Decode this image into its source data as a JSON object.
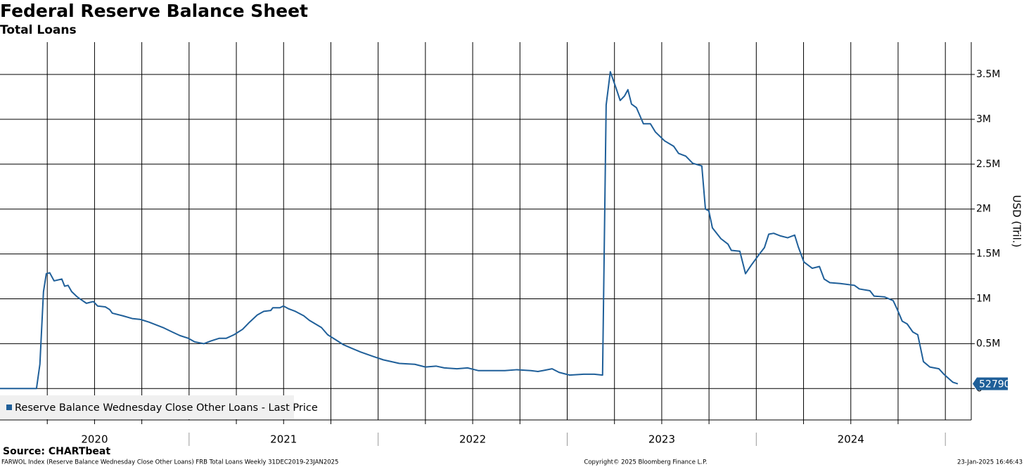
{
  "chart_data": {
    "type": "line",
    "title": "Federal Reserve Balance Sheet",
    "subtitle": "Total Loans",
    "y_label": "USD (Tril.)",
    "source": "Source: CHARTbeat",
    "footer_left": "FARWOL Index (Reserve Balance Wednesday Close Other Loans) FRB Total Loans  Weekly 31DEC2019-23JAN2025",
    "footer_center": "Copyright© 2025 Bloomberg Finance L.P.",
    "footer_right": "23-Jan-2025 16:46:43",
    "xlim": [
      2020,
      2025.137
    ],
    "ylim": [
      -350000,
      3860000
    ],
    "xgrid": [
      2020.25,
      2020.5,
      2020.75,
      2021,
      2021.25,
      2021.5,
      2021.75,
      2022,
      2022.25,
      2022.5,
      2022.75,
      2023,
      2023.25,
      2023.5,
      2023.75,
      2024,
      2024.25,
      2024.5,
      2024.75,
      2025
    ],
    "xticks": [
      {
        "value": 2020.5,
        "label": "2020"
      },
      {
        "value": 2021.5,
        "label": "2021"
      },
      {
        "value": 2022.5,
        "label": "2022"
      },
      {
        "value": 2023.5,
        "label": "2023"
      },
      {
        "value": 2024.5,
        "label": "2024"
      }
    ],
    "yticks": [
      0,
      {
        "value": 500000,
        "label": "0.5M"
      },
      {
        "value": 1000000,
        "label": "1M"
      },
      {
        "value": 1500000,
        "label": "1.5M"
      },
      {
        "value": 2000000,
        "label": "2M"
      },
      {
        "value": 2500000,
        "label": "2.5M"
      },
      {
        "value": 3000000,
        "label": "3M"
      },
      {
        "value": 3500000,
        "label": "3.5M"
      }
    ],
    "grid": true,
    "legend": "bottom-left",
    "x": [
      2020,
      2020.193,
      2020.211,
      2020.23,
      2020.245,
      2020.263,
      2020.286,
      2020.327,
      2020.342,
      2020.36,
      2020.379,
      2020.409,
      2020.457,
      2020.494,
      2020.516,
      2020.557,
      2020.58,
      2020.594,
      2020.65,
      2020.699,
      2020.743,
      2020.788,
      2020.825,
      2020.862,
      2020.911,
      2020.952,
      2020.996,
      2021.03,
      2021.078,
      2021.115,
      2021.16,
      2021.197,
      2021.238,
      2021.283,
      2021.32,
      2021.361,
      2021.395,
      2021.432,
      2021.443,
      2021.48,
      2021.499,
      2021.525,
      2021.562,
      2021.607,
      2021.636,
      2021.7,
      2021.733,
      2021.778,
      2021.815,
      2021.859,
      2021.904,
      2021.971,
      2022.027,
      2022.112,
      2022.194,
      2022.25,
      2022.306,
      2022.35,
      2022.417,
      2022.473,
      2022.529,
      2022.603,
      2022.67,
      2022.734,
      2022.808,
      2022.845,
      2022.871,
      2022.92,
      2022.957,
      2023.013,
      2023.087,
      2023.143,
      2023.187,
      2023.206,
      2023.228,
      2023.258,
      2023.28,
      2023.303,
      2023.321,
      2023.34,
      2023.366,
      2023.403,
      2023.44,
      2023.466,
      2023.515,
      2023.563,
      2023.589,
      2023.627,
      2023.664,
      2023.712,
      2023.731,
      2023.749,
      2023.768,
      2023.813,
      2023.85,
      2023.868,
      2023.913,
      2023.943,
      2023.972,
      2024.017,
      2024.043,
      2024.066,
      2024.092,
      2024.129,
      2024.166,
      2024.203,
      2024.222,
      2024.252,
      2024.296,
      2024.334,
      2024.359,
      2024.389,
      2024.445,
      2024.519,
      2024.545,
      2024.601,
      2024.623,
      2024.679,
      2024.724,
      2024.746,
      2024.772,
      2024.798,
      2024.828,
      2024.854,
      2024.884,
      2024.918,
      2024.966,
      2024.992,
      2025.04,
      2025.066
    ],
    "series": [
      {
        "name": "Reserve Balance Wednesday Close Other Loans - Last Price",
        "color": "#1f5f99",
        "values": [
          0,
          0,
          270000,
          1080000,
          1280000,
          1290000,
          1200000,
          1220000,
          1140000,
          1150000,
          1080000,
          1020000,
          950000,
          970000,
          920000,
          910000,
          880000,
          840000,
          810000,
          780000,
          770000,
          740000,
          710000,
          680000,
          630000,
          590000,
          560000,
          520000,
          500000,
          530000,
          560000,
          560000,
          600000,
          660000,
          740000,
          820000,
          860000,
          870000,
          900000,
          900000,
          920000,
          890000,
          860000,
          810000,
          760000,
          680000,
          600000,
          540000,
          490000,
          450000,
          410000,
          360000,
          320000,
          280000,
          270000,
          240000,
          250000,
          230000,
          220000,
          230000,
          200000,
          200000,
          200000,
          210000,
          200000,
          190000,
          200000,
          220000,
          180000,
          150000,
          160000,
          160000,
          150000,
          3160000,
          3530000,
          3350000,
          3210000,
          3260000,
          3330000,
          3170000,
          3130000,
          2950000,
          2950000,
          2860000,
          2760000,
          2700000,
          2620000,
          2590000,
          2510000,
          2480000,
          2000000,
          1980000,
          1790000,
          1670000,
          1610000,
          1540000,
          1530000,
          1280000,
          1370000,
          1500000,
          1570000,
          1720000,
          1730000,
          1700000,
          1680000,
          1710000,
          1580000,
          1410000,
          1340000,
          1360000,
          1220000,
          1180000,
          1170000,
          1150000,
          1110000,
          1090000,
          1030000,
          1020000,
          980000,
          880000,
          750000,
          720000,
          630000,
          600000,
          300000,
          240000,
          220000,
          160000,
          70000,
          52790
        ]
      }
    ]
  }
}
